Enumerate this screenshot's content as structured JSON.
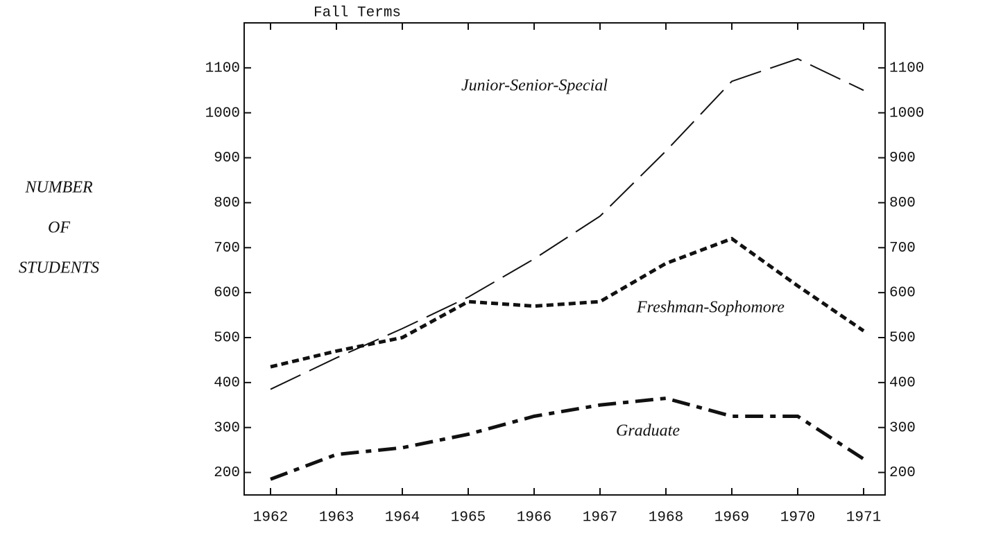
{
  "chart_data": {
    "type": "line",
    "title": "Fall Terms",
    "y_label": [
      "NUMBER",
      "OF",
      "STUDENTS"
    ],
    "categories": [
      "1962",
      "1963",
      "1964",
      "1965",
      "1966",
      "1967",
      "1968",
      "1969",
      "1970",
      "1971"
    ],
    "series": [
      {
        "name": "Junior-Senior-Special",
        "color": "#111111",
        "dash": "long",
        "values": [
          385,
          455,
          520,
          590,
          675,
          770,
          915,
          1070,
          1120,
          1050
        ]
      },
      {
        "name": "Freshman-Sophomore",
        "color": "#111111",
        "dash": "short",
        "values": [
          435,
          470,
          500,
          580,
          570,
          580,
          665,
          720,
          615,
          515
        ]
      },
      {
        "name": "Graduate",
        "color": "#111111",
        "dash": "dashdot",
        "values": [
          185,
          240,
          255,
          285,
          325,
          350,
          365,
          325,
          325,
          230
        ]
      }
    ],
    "ylim": [
      150,
      1200
    ],
    "yticks": [
      200,
      300,
      400,
      500,
      600,
      700,
      800,
      900,
      1000,
      1100
    ],
    "right_axis": true,
    "grid": false
  }
}
